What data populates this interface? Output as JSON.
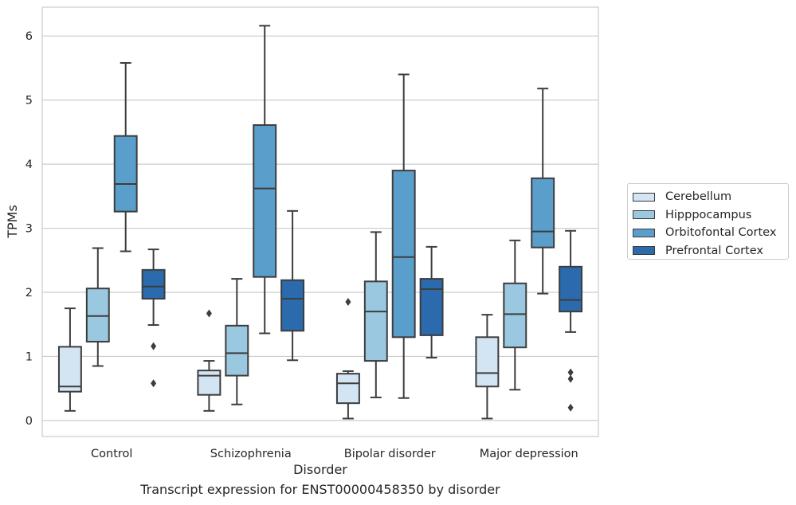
{
  "caption": "Transcript expression for ENST00000458350 by disorder",
  "chart_data": {
    "type": "box",
    "xlabel": "Disorder",
    "ylabel": "TPMs",
    "ylim": [
      -0.25,
      6.45
    ],
    "yticks": [
      "0",
      "1",
      "2",
      "3",
      "4",
      "5",
      "6"
    ],
    "grid": true,
    "legend_position": "right",
    "categories": [
      "Control",
      "Schizophrenia",
      "Bipolar disorder",
      "Major depression"
    ],
    "series": [
      {
        "name": "Cerebellum",
        "color": "#d3e4f3",
        "boxes": [
          {
            "whisker_low": 0.15,
            "q1": 0.45,
            "median": 0.53,
            "q3": 1.15,
            "whisker_high": 1.75,
            "outliers": []
          },
          {
            "whisker_low": 0.15,
            "q1": 0.4,
            "median": 0.7,
            "q3": 0.78,
            "whisker_high": 0.93,
            "outliers": [
              1.67
            ]
          },
          {
            "whisker_low": 0.03,
            "q1": 0.27,
            "median": 0.58,
            "q3": 0.73,
            "whisker_high": 0.77,
            "outliers": [
              1.85
            ]
          },
          {
            "whisker_low": 0.03,
            "q1": 0.53,
            "median": 0.74,
            "q3": 1.3,
            "whisker_high": 1.65,
            "outliers": []
          }
        ]
      },
      {
        "name": "Hipppocampus",
        "color": "#9ac8e0",
        "boxes": [
          {
            "whisker_low": 0.85,
            "q1": 1.23,
            "median": 1.63,
            "q3": 2.06,
            "whisker_high": 2.69,
            "outliers": []
          },
          {
            "whisker_low": 0.25,
            "q1": 0.7,
            "median": 1.05,
            "q3": 1.48,
            "whisker_high": 2.21,
            "outliers": []
          },
          {
            "whisker_low": 0.36,
            "q1": 0.93,
            "median": 1.7,
            "q3": 2.17,
            "whisker_high": 2.94,
            "outliers": []
          },
          {
            "whisker_low": 0.48,
            "q1": 1.14,
            "median": 1.66,
            "q3": 2.14,
            "whisker_high": 2.81,
            "outliers": []
          }
        ]
      },
      {
        "name": "Orbitofontal Cortex",
        "color": "#5a9ecc",
        "boxes": [
          {
            "whisker_low": 2.64,
            "q1": 3.26,
            "median": 3.69,
            "q3": 4.44,
            "whisker_high": 5.58,
            "outliers": []
          },
          {
            "whisker_low": 1.36,
            "q1": 2.24,
            "median": 3.62,
            "q3": 4.61,
            "whisker_high": 6.16,
            "outliers": []
          },
          {
            "whisker_low": 0.35,
            "q1": 1.3,
            "median": 2.55,
            "q3": 3.9,
            "whisker_high": 5.4,
            "outliers": []
          },
          {
            "whisker_low": 1.98,
            "q1": 2.7,
            "median": 2.95,
            "q3": 3.78,
            "whisker_high": 5.18,
            "outliers": []
          }
        ]
      },
      {
        "name": "Prefrontal Cortex",
        "color": "#2a6aad",
        "boxes": [
          {
            "whisker_low": 1.49,
            "q1": 1.9,
            "median": 2.09,
            "q3": 2.35,
            "whisker_high": 2.67,
            "outliers": [
              1.16,
              0.58
            ]
          },
          {
            "whisker_low": 0.94,
            "q1": 1.4,
            "median": 1.9,
            "q3": 2.19,
            "whisker_high": 3.27,
            "outliers": []
          },
          {
            "whisker_low": 0.98,
            "q1": 1.33,
            "median": 2.05,
            "q3": 2.21,
            "whisker_high": 2.71,
            "outliers": []
          },
          {
            "whisker_low": 1.38,
            "q1": 1.7,
            "median": 1.88,
            "q3": 2.4,
            "whisker_high": 2.96,
            "outliers": [
              0.75,
              0.65,
              0.2
            ]
          }
        ]
      }
    ]
  }
}
